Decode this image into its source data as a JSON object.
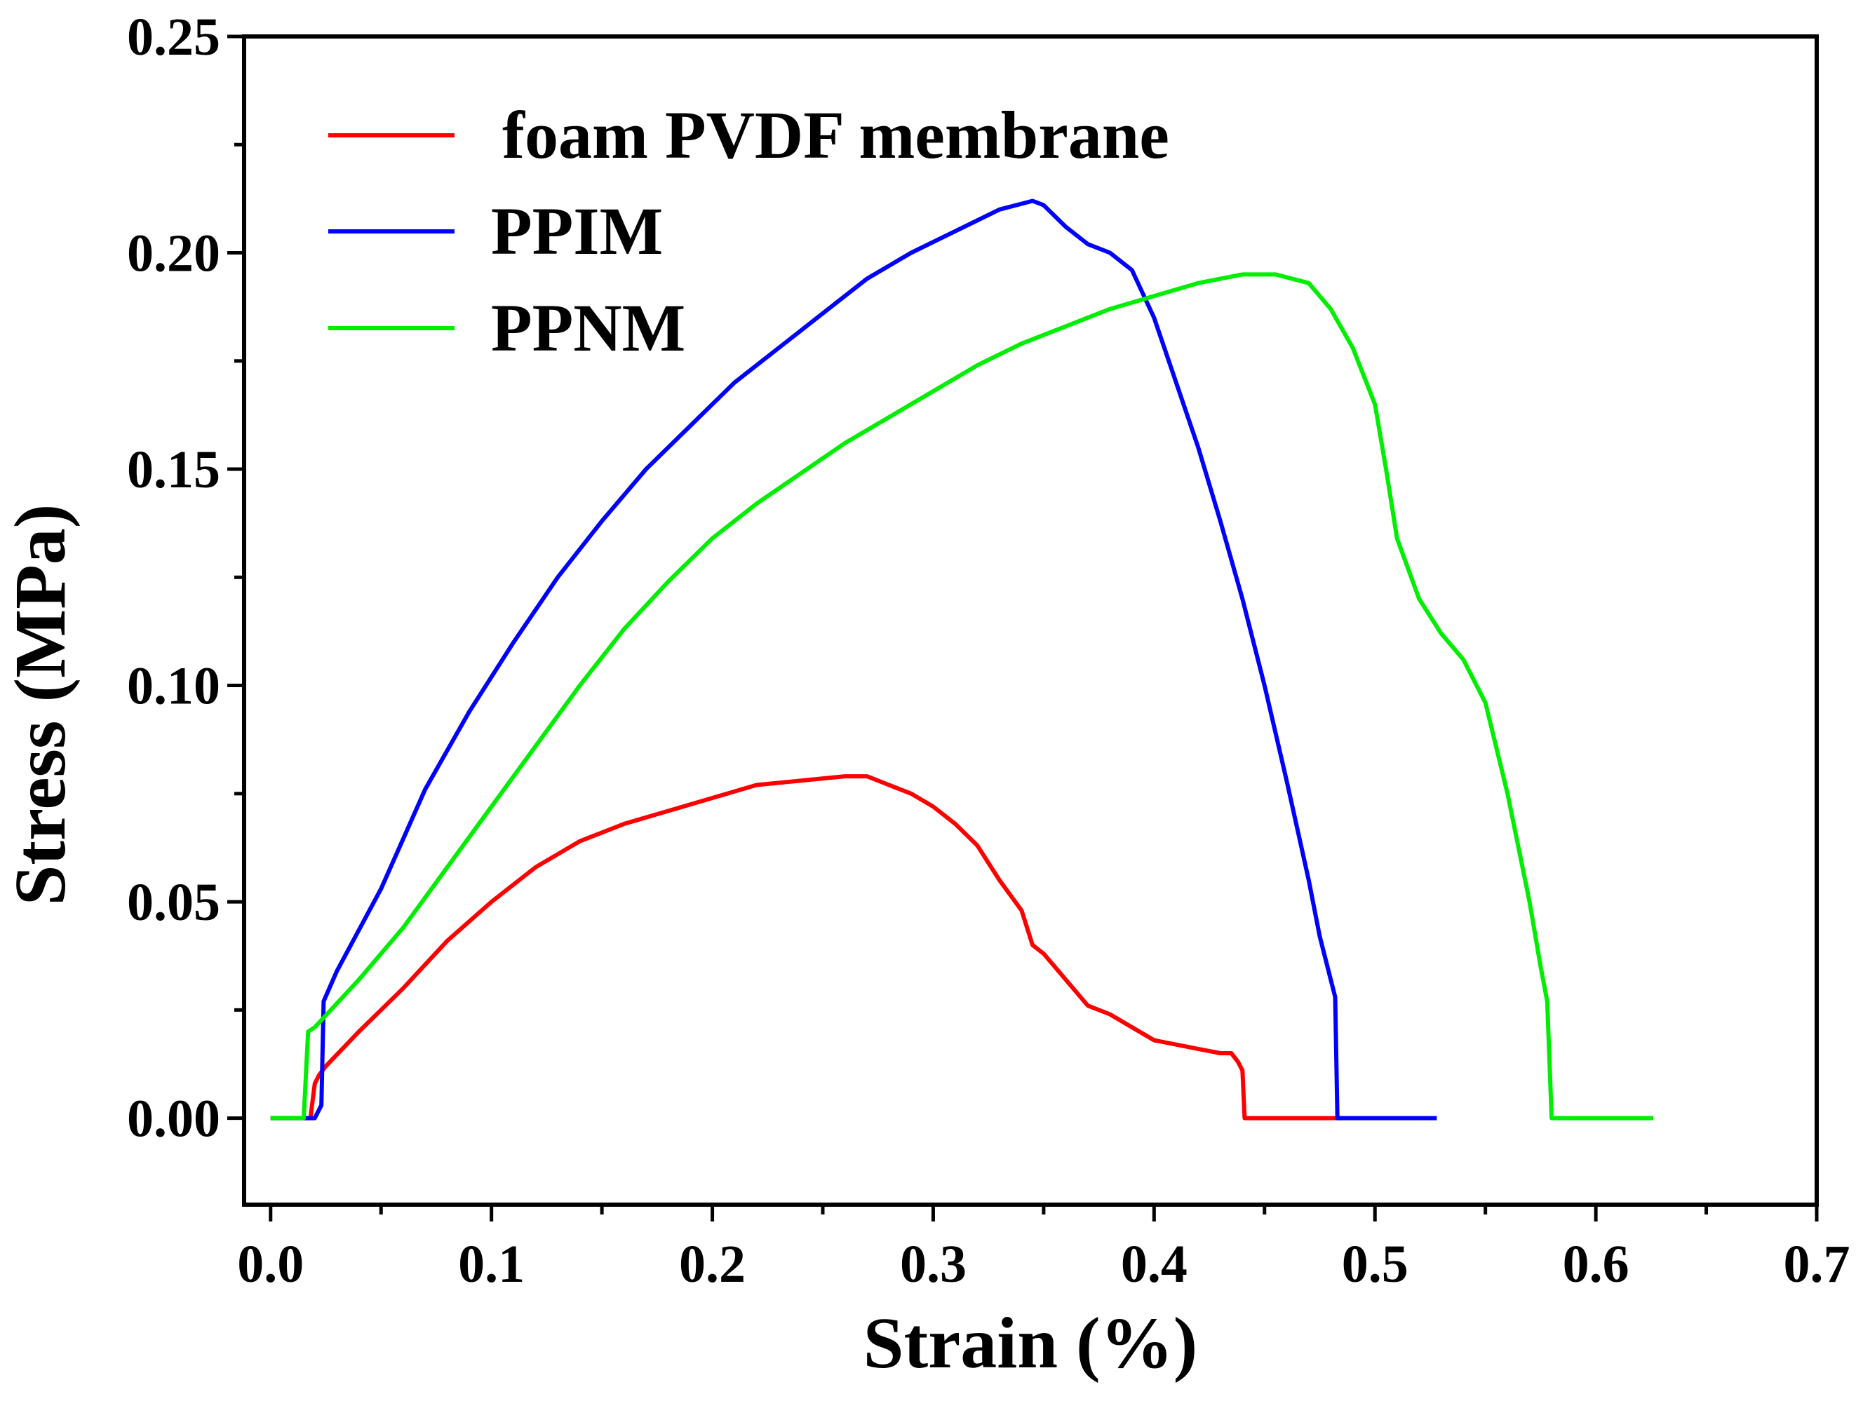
{
  "chart_data": {
    "type": "line",
    "title": "",
    "xlabel": "Strain (%)",
    "ylabel": "Stress (MPa)",
    "xlim": [
      -0.012,
      0.7
    ],
    "ylim": [
      -0.02,
      0.25
    ],
    "x_ticks": [
      0.0,
      0.1,
      0.2,
      0.3,
      0.4,
      0.5,
      0.6,
      0.7
    ],
    "x_tick_labels": [
      "0.0",
      "0.1",
      "0.2",
      "0.3",
      "0.4",
      "0.5",
      "0.6",
      "0.7"
    ],
    "y_ticks": [
      0.0,
      0.05,
      0.1,
      0.15,
      0.2,
      0.25
    ],
    "y_tick_labels": [
      "0.00",
      "0.05",
      "0.10",
      "0.15",
      "0.20",
      "0.25"
    ],
    "grid": false,
    "legend_position": "top-left",
    "series": [
      {
        "name": "foam PVDF membrane",
        "color": "#ff0000",
        "x": [
          0.0,
          0.018,
          0.02,
          0.022,
          0.025,
          0.04,
          0.06,
          0.08,
          0.1,
          0.12,
          0.14,
          0.16,
          0.18,
          0.2,
          0.22,
          0.24,
          0.26,
          0.27,
          0.28,
          0.29,
          0.3,
          0.31,
          0.32,
          0.33,
          0.34,
          0.345,
          0.35,
          0.36,
          0.37,
          0.38,
          0.39,
          0.4,
          0.41,
          0.42,
          0.43,
          0.435,
          0.438,
          0.44,
          0.441,
          0.46,
          0.485
        ],
        "y": [
          0.0,
          0.0,
          0.008,
          0.01,
          0.012,
          0.02,
          0.03,
          0.041,
          0.05,
          0.058,
          0.064,
          0.068,
          0.071,
          0.074,
          0.077,
          0.078,
          0.079,
          0.079,
          0.077,
          0.075,
          0.072,
          0.068,
          0.063,
          0.055,
          0.048,
          0.04,
          0.038,
          0.032,
          0.026,
          0.024,
          0.021,
          0.018,
          0.017,
          0.016,
          0.015,
          0.015,
          0.013,
          0.011,
          0.0,
          0.0,
          0.0
        ]
      },
      {
        "name": "PPIM",
        "color": "#0000ff",
        "x": [
          0.0,
          0.02,
          0.023,
          0.024,
          0.03,
          0.05,
          0.07,
          0.09,
          0.11,
          0.13,
          0.15,
          0.17,
          0.19,
          0.21,
          0.23,
          0.25,
          0.27,
          0.29,
          0.31,
          0.33,
          0.345,
          0.35,
          0.36,
          0.37,
          0.38,
          0.39,
          0.4,
          0.41,
          0.42,
          0.43,
          0.44,
          0.45,
          0.46,
          0.47,
          0.475,
          0.48,
          0.482,
          0.483,
          0.5,
          0.528
        ],
        "y": [
          0.0,
          0.0,
          0.003,
          0.027,
          0.034,
          0.053,
          0.076,
          0.094,
          0.11,
          0.125,
          0.138,
          0.15,
          0.16,
          0.17,
          0.178,
          0.186,
          0.194,
          0.2,
          0.205,
          0.21,
          0.212,
          0.211,
          0.206,
          0.202,
          0.2,
          0.196,
          0.185,
          0.17,
          0.155,
          0.138,
          0.12,
          0.1,
          0.078,
          0.055,
          0.042,
          0.032,
          0.028,
          0.0,
          0.0,
          0.0
        ]
      },
      {
        "name": "PPNM",
        "color": "#00ee00",
        "x": [
          0.0,
          0.015,
          0.017,
          0.02,
          0.04,
          0.06,
          0.08,
          0.1,
          0.12,
          0.14,
          0.16,
          0.18,
          0.2,
          0.22,
          0.24,
          0.26,
          0.28,
          0.3,
          0.32,
          0.34,
          0.36,
          0.38,
          0.4,
          0.42,
          0.44,
          0.455,
          0.47,
          0.48,
          0.49,
          0.5,
          0.505,
          0.51,
          0.52,
          0.53,
          0.54,
          0.55,
          0.56,
          0.57,
          0.575,
          0.578,
          0.58,
          0.6,
          0.626
        ],
        "y": [
          0.0,
          0.0,
          0.02,
          0.021,
          0.032,
          0.044,
          0.058,
          0.072,
          0.086,
          0.1,
          0.113,
          0.124,
          0.134,
          0.142,
          0.149,
          0.156,
          0.162,
          0.168,
          0.174,
          0.179,
          0.183,
          0.187,
          0.19,
          0.193,
          0.195,
          0.195,
          0.193,
          0.187,
          0.178,
          0.165,
          0.15,
          0.134,
          0.12,
          0.112,
          0.106,
          0.096,
          0.075,
          0.05,
          0.035,
          0.027,
          0.0,
          0.0,
          0.0
        ]
      }
    ]
  }
}
